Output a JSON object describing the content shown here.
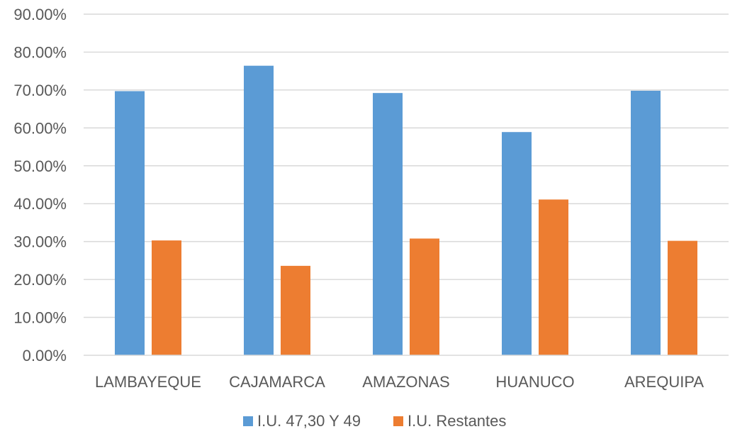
{
  "chart_data": {
    "type": "bar",
    "title": "",
    "xlabel": "",
    "ylabel": "",
    "categories": [
      "LAMBAYEQUE",
      "CAJAMARCA",
      "AMAZONAS",
      "HUANUCO",
      "AREQUIPA"
    ],
    "series": [
      {
        "name": "I.U. 47,30 Y 49",
        "color": "#5b9bd5",
        "values": [
          69.7,
          76.4,
          69.2,
          58.9,
          69.8
        ]
      },
      {
        "name": "I.U. Restantes",
        "color": "#ed7d31",
        "values": [
          30.3,
          23.6,
          30.8,
          41.1,
          30.2
        ]
      }
    ],
    "ylim": [
      0,
      90
    ],
    "yticks": [
      0,
      10,
      20,
      30,
      40,
      50,
      60,
      70,
      80,
      90
    ],
    "ytick_labels": [
      "0.00%",
      "10.00%",
      "20.00%",
      "30.00%",
      "40.00%",
      "50.00%",
      "60.00%",
      "70.00%",
      "80.00%",
      "90.00%"
    ],
    "grid": true,
    "legend_position": "bottom"
  }
}
